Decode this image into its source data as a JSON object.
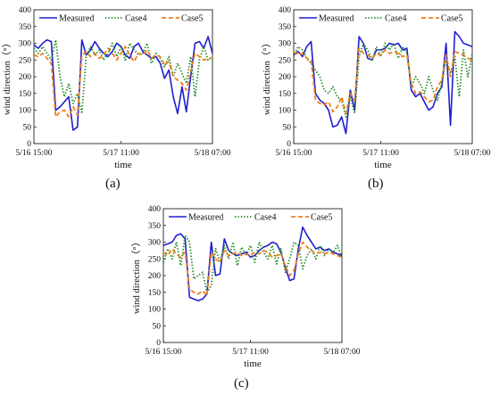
{
  "chart_data": [
    {
      "panel_label": "(a)",
      "type": "line",
      "xlabel": "time",
      "ylabel": "wind direction（°）",
      "ylim": [
        0,
        400
      ],
      "yticks": [
        0,
        50,
        100,
        150,
        200,
        250,
        300,
        350,
        400
      ],
      "x_count": 42,
      "xticks": [
        {
          "label": "5/16 15:00",
          "index": 0
        },
        {
          "label": "5/17 11:00",
          "index": 20
        },
        {
          "label": "5/18 07:00",
          "index": 41
        }
      ],
      "legend_position": "top",
      "series": [
        {
          "name": "Measured",
          "color": "#1f1fd0",
          "style": "solid",
          "values": [
            295,
            285,
            300,
            310,
            305,
            100,
            110,
            125,
            140,
            40,
            50,
            310,
            265,
            280,
            305,
            285,
            270,
            260,
            275,
            300,
            290,
            265,
            255,
            290,
            300,
            275,
            265,
            255,
            260,
            240,
            195,
            220,
            140,
            90,
            170,
            95,
            200,
            300,
            305,
            285,
            320,
            270
          ]
        },
        {
          "name": "Case4",
          "color": "#1e8a1e",
          "style": "dotted",
          "values": [
            285,
            270,
            290,
            270,
            250,
            310,
            200,
            140,
            180,
            120,
            150,
            90,
            260,
            290,
            265,
            280,
            250,
            270,
            300,
            260,
            290,
            250,
            300,
            280,
            265,
            270,
            300,
            240,
            270,
            255,
            230,
            260,
            200,
            240,
            210,
            180,
            260,
            140,
            250,
            290,
            250,
            260
          ]
        },
        {
          "name": "Case5",
          "color": "#f07f1c",
          "style": "dashed",
          "values": [
            265,
            260,
            270,
            255,
            240,
            80,
            95,
            100,
            80,
            110,
            85,
            265,
            275,
            260,
            270,
            255,
            265,
            285,
            270,
            250,
            270,
            290,
            265,
            245,
            270,
            265,
            280,
            255,
            265,
            260,
            235,
            245,
            200,
            190,
            180,
            160,
            215,
            270,
            260,
            250,
            255,
            255
          ]
        }
      ]
    },
    {
      "panel_label": "(b)",
      "type": "line",
      "xlabel": "time",
      "ylabel": "wind direction（°）",
      "ylim": [
        0,
        400
      ],
      "yticks": [
        0,
        50,
        100,
        150,
        200,
        250,
        300,
        350,
        400
      ],
      "x_count": 42,
      "xticks": [
        {
          "label": "5/16 15:00",
          "index": 0
        },
        {
          "label": "5/17 11:00",
          "index": 20
        },
        {
          "label": "5/18 07:00",
          "index": 41
        }
      ],
      "legend_position": "top",
      "series": [
        {
          "name": "Measured",
          "color": "#1f1fd0",
          "style": "solid",
          "values": [
            265,
            275,
            260,
            290,
            305,
            150,
            130,
            120,
            100,
            50,
            55,
            80,
            30,
            160,
            100,
            320,
            300,
            255,
            250,
            280,
            280,
            285,
            300,
            295,
            300,
            280,
            285,
            160,
            140,
            150,
            125,
            100,
            110,
            150,
            170,
            300,
            55,
            335,
            320,
            300,
            295,
            290
          ]
        },
        {
          "name": "Case4",
          "color": "#1e8a1e",
          "style": "dotted",
          "values": [
            260,
            290,
            280,
            255,
            240,
            220,
            200,
            160,
            150,
            170,
            140,
            130,
            80,
            140,
            90,
            260,
            300,
            280,
            250,
            290,
            260,
            300,
            280,
            300,
            255,
            290,
            270,
            170,
            200,
            180,
            150,
            200,
            160,
            130,
            180,
            250,
            210,
            260,
            140,
            280,
            200,
            270
          ]
        },
        {
          "name": "Case5",
          "color": "#f07f1c",
          "style": "dashed",
          "values": [
            275,
            265,
            270,
            255,
            250,
            130,
            120,
            115,
            125,
            95,
            110,
            140,
            90,
            150,
            130,
            285,
            270,
            265,
            255,
            270,
            265,
            280,
            270,
            275,
            270,
            260,
            265,
            180,
            150,
            155,
            140,
            125,
            130,
            170,
            190,
            265,
            200,
            275,
            270,
            265,
            255,
            250
          ]
        }
      ]
    },
    {
      "panel_label": "(c)",
      "type": "line",
      "xlabel": "time",
      "ylabel": "wind direction（°）",
      "ylim": [
        0,
        400
      ],
      "yticks": [
        0,
        50,
        100,
        150,
        200,
        250,
        300,
        350,
        400
      ],
      "x_count": 42,
      "xticks": [
        {
          "label": "5/16 15:00",
          "index": 0
        },
        {
          "label": "5/17 11:00",
          "index": 20
        },
        {
          "label": "5/18 07:00",
          "index": 41
        }
      ],
      "legend_position": "top",
      "series": [
        {
          "name": "Measured",
          "color": "#1f1fd0",
          "style": "solid",
          "values": [
            290,
            295,
            300,
            320,
            325,
            310,
            135,
            130,
            125,
            130,
            145,
            300,
            200,
            205,
            310,
            275,
            265,
            260,
            265,
            270,
            255,
            260,
            275,
            285,
            290,
            300,
            295,
            270,
            225,
            185,
            190,
            280,
            345,
            320,
            300,
            280,
            285,
            275,
            280,
            270,
            265,
            260
          ]
        },
        {
          "name": "Case4",
          "color": "#1e8a1e",
          "style": "dotted",
          "values": [
            240,
            280,
            250,
            300,
            230,
            320,
            300,
            190,
            200,
            210,
            150,
            170,
            280,
            240,
            290,
            250,
            300,
            230,
            285,
            260,
            290,
            240,
            300,
            270,
            250,
            290,
            235,
            280,
            210,
            250,
            300,
            290,
            220,
            260,
            280,
            250,
            290,
            260,
            280,
            270,
            290,
            255
          ]
        },
        {
          "name": "Case5",
          "color": "#f07f1c",
          "style": "dashed",
          "values": [
            270,
            260,
            280,
            265,
            255,
            270,
            160,
            150,
            145,
            155,
            140,
            270,
            250,
            240,
            275,
            260,
            265,
            270,
            260,
            265,
            260,
            270,
            265,
            275,
            270,
            255,
            260,
            265,
            230,
            200,
            215,
            265,
            300,
            285,
            275,
            265,
            270,
            265,
            270,
            265,
            260,
            255
          ]
        }
      ]
    }
  ]
}
